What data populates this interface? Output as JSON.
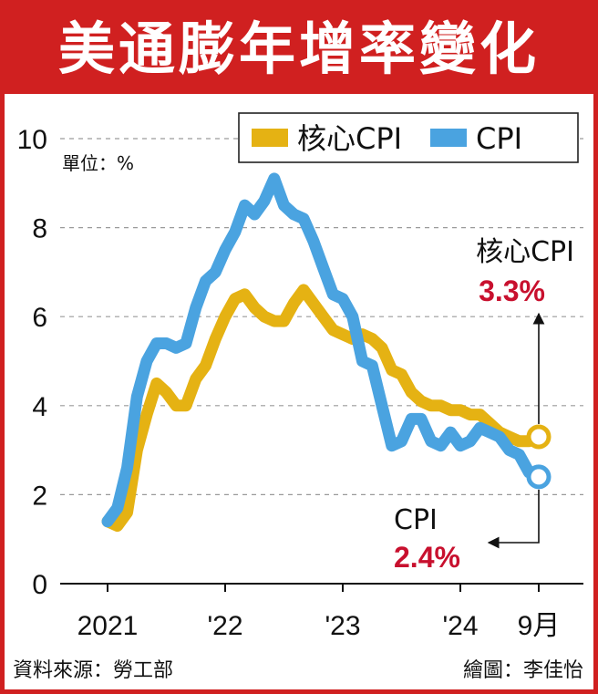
{
  "title": "美通膨年增率變化",
  "unit_label": "單位：%",
  "source": "資料來源：勞工部",
  "credit": "繪圖：李佳怡",
  "colors": {
    "title_bg": "#d02020",
    "core_cpi": "#e5b213",
    "cpi": "#4aa3e0",
    "highlight": "#c8102e"
  },
  "chart_data": {
    "type": "line",
    "ylim": [
      0,
      10
    ],
    "yticks": [
      "0",
      "2",
      "4",
      "6",
      "8",
      "10"
    ],
    "xticks": [
      "2021",
      "'22",
      "'23",
      "'24",
      "9月"
    ],
    "legend": [
      "核心CPI",
      "CPI"
    ],
    "legend_position": "top-right",
    "grid": "horizontal dashed",
    "series": [
      {
        "name": "核心CPI",
        "x": [
          "2021-01",
          "2021-02",
          "2021-03",
          "2021-04",
          "2021-05",
          "2021-06",
          "2021-07",
          "2021-08",
          "2021-09",
          "2021-10",
          "2021-11",
          "2021-12",
          "2022-01",
          "2022-02",
          "2022-03",
          "2022-04",
          "2022-05",
          "2022-06",
          "2022-07",
          "2022-08",
          "2022-09",
          "2022-10",
          "2022-11",
          "2022-12",
          "2023-01",
          "2023-02",
          "2023-03",
          "2023-04",
          "2023-05",
          "2023-06",
          "2023-07",
          "2023-08",
          "2023-09",
          "2023-10",
          "2023-11",
          "2023-12",
          "2024-01",
          "2024-02",
          "2024-03",
          "2024-04",
          "2024-05",
          "2024-06",
          "2024-07",
          "2024-08",
          "2024-09"
        ],
        "values": [
          1.4,
          1.3,
          1.6,
          3.0,
          3.8,
          4.5,
          4.3,
          4.0,
          4.0,
          4.6,
          4.9,
          5.5,
          6.0,
          6.4,
          6.5,
          6.2,
          6.0,
          5.9,
          5.9,
          6.3,
          6.6,
          6.3,
          6.0,
          5.7,
          5.6,
          5.5,
          5.6,
          5.5,
          5.3,
          4.8,
          4.7,
          4.3,
          4.1,
          4.0,
          4.0,
          3.9,
          3.9,
          3.8,
          3.8,
          3.6,
          3.4,
          3.3,
          3.2,
          3.2,
          3.3
        ]
      },
      {
        "name": "CPI",
        "x": [
          "2021-01",
          "2021-02",
          "2021-03",
          "2021-04",
          "2021-05",
          "2021-06",
          "2021-07",
          "2021-08",
          "2021-09",
          "2021-10",
          "2021-11",
          "2021-12",
          "2022-01",
          "2022-02",
          "2022-03",
          "2022-04",
          "2022-05",
          "2022-06",
          "2022-07",
          "2022-08",
          "2022-09",
          "2022-10",
          "2022-11",
          "2022-12",
          "2023-01",
          "2023-02",
          "2023-03",
          "2023-04",
          "2023-05",
          "2023-06",
          "2023-07",
          "2023-08",
          "2023-09",
          "2023-10",
          "2023-11",
          "2023-12",
          "2024-01",
          "2024-02",
          "2024-03",
          "2024-04",
          "2024-05",
          "2024-06",
          "2024-07",
          "2024-08",
          "2024-09"
        ],
        "values": [
          1.4,
          1.7,
          2.6,
          4.2,
          5.0,
          5.4,
          5.4,
          5.3,
          5.4,
          6.2,
          6.8,
          7.0,
          7.5,
          7.9,
          8.5,
          8.3,
          8.6,
          9.1,
          8.5,
          8.3,
          8.2,
          7.7,
          7.1,
          6.5,
          6.4,
          6.0,
          5.0,
          4.9,
          4.0,
          3.1,
          3.2,
          3.7,
          3.7,
          3.2,
          3.1,
          3.4,
          3.1,
          3.2,
          3.5,
          3.4,
          3.3,
          3.0,
          2.9,
          2.5,
          2.4
        ]
      }
    ],
    "annotations": [
      {
        "name": "核心CPI",
        "value": "3.3%"
      },
      {
        "name": "CPI",
        "value": "2.4%"
      }
    ]
  }
}
